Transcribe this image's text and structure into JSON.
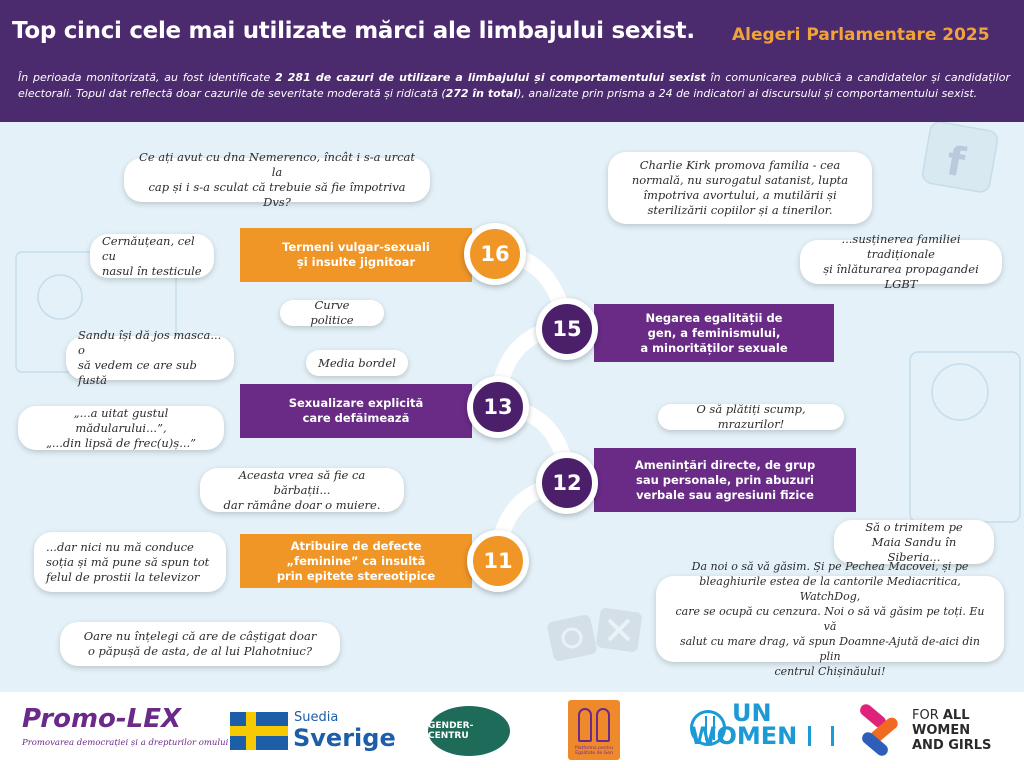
{
  "header": {
    "title": "Top cinci cele mai utilizate mărci ale limbajului sexist.",
    "subtitle": "Alegeri Parlamentare 2025",
    "intro_part1": "În perioada monitorizată, au fost identificate ",
    "intro_bold1": "2 281 de cazuri de utilizare a limbajului și comportamentului sexist",
    "intro_part2": " în comunicarea publică a candidatelor și candidaților electorali. Topul dat reflectă doar cazurile de severitate moderată și ridicată (",
    "intro_bold2": "272 în total",
    "intro_part3": "), analizate prin prisma a 24 de indicatori ai discursului și comportamentului sexist."
  },
  "categories": [
    {
      "count": "16",
      "label": "Termeni vulgar-sexuali\nși insulte  jignitoar",
      "color": "orange"
    },
    {
      "count": "15",
      "label": "Negarea egalității de\ngen, a  feminismului,\na  minorităților sexuale",
      "color": "purple"
    },
    {
      "count": "13",
      "label": "Sexualizare explicită\ncare  defăimează",
      "color": "purple"
    },
    {
      "count": "12",
      "label": "Amenințări directe, de grup\nsau personale, prin abuzuri\nverbale sau agresiuni fizice",
      "color": "purple"
    },
    {
      "count": "11",
      "label": "Atribuire de defecte\n„feminine” ca insultă\nprin epitete stereotipice",
      "color": "orange"
    }
  ],
  "quotes": [
    "Ce ați avut cu dna Nemerenco, încât i s-a urcat la\ncap și i s-a sculat că trebuie să fie împotriva Dvs?",
    "Charlie Kirk promova familia - cea\nnormală, nu surogatul satanist, lupta\nîmpotriva avortului, a mutilării și\nsterilizării copiilor și a tinerilor.",
    "Cernăuțean, cel cu\nnasul în testicule",
    "...susținerea familiei tradiționale\nși înlăturarea propagandei LGBT",
    "Curve politice",
    "Sandu își dă jos masca... o\nsă vedem ce are sub fustă",
    "Media bordel",
    "„...a uitat gustul mădularului...”,\n„...din lipsă de frec(u)ș...”",
    "O să plătiți scump, mrazurilor!",
    "Aceasta vrea să fie ca bărbații...\ndar rămâne doar o muiere.",
    "Să o trimitem pe\nMaia Sandu în Siberia...",
    "...dar nici nu mă conduce\nsoția și mă pune să spun tot\nfelul de prostii la televizor",
    "Da noi o să vă găsim. Și pe Pechea Macovei, și pe\nbleaghiurile estea de la cantorile Mediacritica, WatchDog,\ncare se ocupă cu cenzura. Noi o să vă găsim pe toți. Eu vă\nsalut cu mare drag, vă spun Doamne-Ajută de-aici din plin\ncentrul Chișinăului!",
    "Oare nu înțelegi că are de câștigat doar\no păpușă de asta, de al lui Plahotniuc?"
  ],
  "footer": {
    "promolex": "Promo-LEX",
    "promolex_tagline": "Promovarea democrației și a drepturilor omului",
    "suedia": "Suedia",
    "sverige": "Sverige",
    "gender_centru": "GENDER-CENTRU",
    "platforma": "Platforma pentru Egalitate de Gen",
    "un": "UN",
    "women": "WOMEN",
    "fawg_line1": "FOR ",
    "fawg_all": "ALL",
    "fawg_line2": "WOMEN",
    "fawg_line3": "AND GIRLS"
  },
  "colors": {
    "header_bg": "#4b2a6d",
    "accent_orange": "#ef9627",
    "accent_purple": "#6a2b87",
    "main_bg": "#e4f1f8"
  }
}
